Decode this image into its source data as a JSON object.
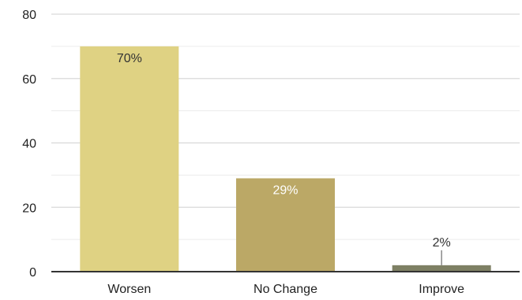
{
  "chart_data": {
    "type": "bar",
    "categories": [
      "Worsen",
      "No Change",
      "Improve"
    ],
    "values": [
      70,
      29,
      2
    ],
    "data_labels": [
      "70%",
      "29%",
      "2%"
    ],
    "ylim": [
      0,
      80
    ],
    "yticks": [
      0,
      20,
      40,
      60,
      80
    ],
    "title": "",
    "xlabel": "",
    "ylabel": "",
    "grid": true,
    "legend": "none",
    "colors": [
      "#dfd283",
      "#bba866",
      "#7e8064"
    ],
    "label_colors": [
      "#333333",
      "#ffffff",
      "#333333"
    ],
    "gridline_color": "#d9d9d9",
    "axis_color": "#333333"
  }
}
